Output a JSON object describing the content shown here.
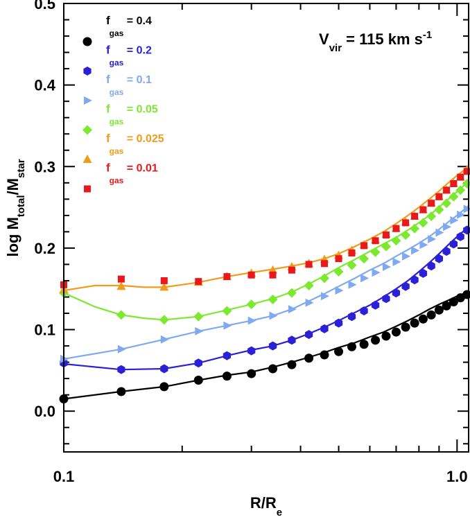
{
  "chart_data": {
    "type": "line",
    "title": "",
    "xlabel": {
      "main": "R/R",
      "sub": "e"
    },
    "ylabel": {
      "p1": "log M",
      "s1": "total",
      "p2": "/M",
      "s2": "star"
    },
    "xscale": "log",
    "xlim": [
      0.1,
      1.07
    ],
    "ylim": [
      -0.05,
      0.5
    ],
    "x_ticks": [
      {
        "value": 0.1,
        "label": "0.1"
      },
      {
        "value": 1.0,
        "label": "1.0"
      }
    ],
    "y_ticks": [
      {
        "value": 0.0,
        "label": "0.0"
      },
      {
        "value": 0.1,
        "label": "0.1"
      },
      {
        "value": 0.2,
        "label": "0.2"
      },
      {
        "value": 0.3,
        "label": "0.3"
      },
      {
        "value": 0.4,
        "label": "0.4"
      },
      {
        "value": 0.5,
        "label": "0.5"
      }
    ],
    "annotation": {
      "V": "V",
      "sub": "vir",
      "rest": " = 115 km s",
      "sup": "-1"
    },
    "legend_position": "top-left",
    "series": [
      {
        "name": "f_gas = 0.4",
        "legend": {
          "f": "f",
          "sub": "gas",
          "value": " = 0.4"
        },
        "color": "#000000",
        "marker": "circle",
        "line": {
          "x": [
            0.1,
            0.14,
            0.18,
            0.22,
            0.26,
            0.3,
            0.34,
            0.38,
            0.42,
            0.46,
            0.5,
            0.55,
            0.6,
            0.65,
            0.7,
            0.75,
            0.8,
            0.85,
            0.9,
            0.95,
            1.0,
            1.05
          ],
          "y": [
            0.015,
            0.024,
            0.03,
            0.038,
            0.044,
            0.048,
            0.054,
            0.06,
            0.066,
            0.072,
            0.078,
            0.084,
            0.091,
            0.097,
            0.104,
            0.111,
            0.118,
            0.125,
            0.131,
            0.136,
            0.141,
            0.145
          ]
        },
        "points": {
          "x": [
            0.1,
            0.14,
            0.18,
            0.22,
            0.26,
            0.3,
            0.34,
            0.38,
            0.42,
            0.46,
            0.5,
            0.54,
            0.58,
            0.62,
            0.66,
            0.7,
            0.74,
            0.78,
            0.82,
            0.86,
            0.9,
            0.94,
            0.98,
            1.02,
            1.06
          ],
          "y": [
            0.015,
            0.024,
            0.03,
            0.038,
            0.043,
            0.046,
            0.052,
            0.057,
            0.065,
            0.069,
            0.073,
            0.079,
            0.082,
            0.087,
            0.092,
            0.097,
            0.103,
            0.108,
            0.113,
            0.118,
            0.124,
            0.129,
            0.134,
            0.139,
            0.143
          ]
        }
      },
      {
        "name": "f_gas = 0.2",
        "legend": {
          "f": "f",
          "sub": "gas",
          "value": " = 0.2"
        },
        "color": "#2b20d6",
        "marker": "hexagon",
        "line": {
          "x": [
            0.1,
            0.14,
            0.18,
            0.22,
            0.26,
            0.3,
            0.34,
            0.38,
            0.42,
            0.46,
            0.5,
            0.55,
            0.6,
            0.65,
            0.7,
            0.75,
            0.8,
            0.85,
            0.9,
            0.95,
            1.0,
            1.07
          ],
          "y": [
            0.058,
            0.051,
            0.052,
            0.059,
            0.068,
            0.075,
            0.08,
            0.087,
            0.095,
            0.103,
            0.111,
            0.121,
            0.13,
            0.14,
            0.15,
            0.16,
            0.171,
            0.182,
            0.193,
            0.204,
            0.214,
            0.226
          ]
        },
        "points": {
          "x": [
            0.1,
            0.14,
            0.18,
            0.22,
            0.26,
            0.3,
            0.34,
            0.38,
            0.42,
            0.46,
            0.5,
            0.54,
            0.58,
            0.62,
            0.66,
            0.7,
            0.74,
            0.78,
            0.82,
            0.86,
            0.9,
            0.94,
            0.98,
            1.02,
            1.06
          ],
          "y": [
            0.059,
            0.051,
            0.052,
            0.059,
            0.068,
            0.074,
            0.08,
            0.087,
            0.094,
            0.101,
            0.108,
            0.116,
            0.123,
            0.13,
            0.138,
            0.145,
            0.153,
            0.161,
            0.169,
            0.178,
            0.187,
            0.196,
            0.205,
            0.214,
            0.222
          ]
        }
      },
      {
        "name": "f_gas = 0.1",
        "legend": {
          "f": "f",
          "sub": "gas",
          "value": " = 0.1"
        },
        "color": "#7fa9f0",
        "marker": "triangle-right",
        "line": {
          "x": [
            0.1,
            0.14,
            0.18,
            0.22,
            0.26,
            0.3,
            0.34,
            0.38,
            0.42,
            0.46,
            0.5,
            0.55,
            0.6,
            0.65,
            0.7,
            0.75,
            0.8,
            0.85,
            0.9,
            0.95,
            1.0,
            1.07
          ],
          "y": [
            0.064,
            0.076,
            0.088,
            0.098,
            0.105,
            0.111,
            0.117,
            0.125,
            0.135,
            0.144,
            0.153,
            0.163,
            0.173,
            0.181,
            0.19,
            0.198,
            0.206,
            0.214,
            0.223,
            0.232,
            0.24,
            0.252
          ]
        },
        "points": {
          "x": [
            0.1,
            0.14,
            0.18,
            0.22,
            0.26,
            0.3,
            0.34,
            0.38,
            0.42,
            0.46,
            0.5,
            0.54,
            0.58,
            0.62,
            0.66,
            0.7,
            0.74,
            0.78,
            0.82,
            0.86,
            0.9,
            0.94,
            0.98,
            1.02,
            1.06
          ],
          "y": [
            0.064,
            0.076,
            0.088,
            0.098,
            0.105,
            0.111,
            0.117,
            0.125,
            0.133,
            0.141,
            0.148,
            0.155,
            0.163,
            0.17,
            0.177,
            0.183,
            0.19,
            0.197,
            0.204,
            0.211,
            0.219,
            0.226,
            0.234,
            0.241,
            0.248
          ]
        }
      },
      {
        "name": "f_gas = 0.05",
        "legend": {
          "f": "f",
          "sub": "gas",
          "value": " = 0.05"
        },
        "color": "#7ce830",
        "marker": "diamond",
        "line": {
          "x": [
            0.1,
            0.12,
            0.14,
            0.16,
            0.18,
            0.22,
            0.26,
            0.3,
            0.34,
            0.38,
            0.42,
            0.46,
            0.5,
            0.55,
            0.6,
            0.65,
            0.7,
            0.75,
            0.8,
            0.85,
            0.9,
            0.95,
            1.0,
            1.07
          ],
          "y": [
            0.145,
            0.128,
            0.118,
            0.114,
            0.112,
            0.116,
            0.124,
            0.131,
            0.138,
            0.146,
            0.156,
            0.166,
            0.176,
            0.186,
            0.196,
            0.205,
            0.213,
            0.222,
            0.231,
            0.24,
            0.25,
            0.26,
            0.269,
            0.282
          ]
        },
        "points": {
          "x": [
            0.1,
            0.14,
            0.18,
            0.22,
            0.26,
            0.3,
            0.34,
            0.38,
            0.42,
            0.46,
            0.5,
            0.54,
            0.58,
            0.62,
            0.66,
            0.7,
            0.74,
            0.78,
            0.82,
            0.86,
            0.9,
            0.94,
            0.98,
            1.02,
            1.06
          ],
          "y": [
            0.145,
            0.118,
            0.112,
            0.116,
            0.123,
            0.131,
            0.137,
            0.145,
            0.154,
            0.163,
            0.171,
            0.179,
            0.187,
            0.195,
            0.202,
            0.209,
            0.216,
            0.224,
            0.231,
            0.239,
            0.247,
            0.255,
            0.263,
            0.271,
            0.279
          ]
        }
      },
      {
        "name": "f_gas = 0.025",
        "legend": {
          "f": "f",
          "sub": "gas",
          "value": " = 0.025"
        },
        "color": "#f39a18",
        "marker": "triangle-up",
        "line": {
          "x": [
            0.1,
            0.12,
            0.14,
            0.16,
            0.18,
            0.2,
            0.22,
            0.26,
            0.3,
            0.34,
            0.38,
            0.42,
            0.46,
            0.5,
            0.55,
            0.6,
            0.65,
            0.7,
            0.75,
            0.8,
            0.85,
            0.9,
            0.95,
            1.0,
            1.07
          ],
          "y": [
            0.148,
            0.154,
            0.154,
            0.152,
            0.152,
            0.155,
            0.158,
            0.165,
            0.17,
            0.174,
            0.178,
            0.182,
            0.187,
            0.193,
            0.202,
            0.211,
            0.22,
            0.23,
            0.24,
            0.25,
            0.26,
            0.27,
            0.28,
            0.289,
            0.3
          ]
        },
        "points": {
          "x": [
            0.1,
            0.14,
            0.18,
            0.22,
            0.26,
            0.3,
            0.34,
            0.38,
            0.42,
            0.46,
            0.5,
            0.54,
            0.58,
            0.62,
            0.66,
            0.7,
            0.74,
            0.78,
            0.82,
            0.86,
            0.9,
            0.94,
            0.98,
            1.02,
            1.06
          ],
          "y": [
            0.149,
            0.153,
            0.152,
            0.158,
            0.165,
            0.169,
            0.173,
            0.177,
            0.181,
            0.186,
            0.191,
            0.197,
            0.204,
            0.21,
            0.217,
            0.224,
            0.232,
            0.239,
            0.247,
            0.255,
            0.263,
            0.271,
            0.279,
            0.287,
            0.296
          ]
        }
      },
      {
        "name": "f_gas = 0.01",
        "legend": {
          "f": "f",
          "sub": "gas",
          "value": " = 0.01"
        },
        "color": "#e8191c",
        "marker": "square",
        "points": {
          "x": [
            0.1,
            0.14,
            0.18,
            0.22,
            0.26,
            0.3,
            0.34,
            0.38,
            0.42,
            0.46,
            0.5,
            0.54,
            0.58,
            0.62,
            0.66,
            0.7,
            0.74,
            0.78,
            0.82,
            0.86,
            0.9,
            0.94,
            0.98,
            1.02,
            1.06
          ],
          "y": [
            0.155,
            0.162,
            0.16,
            0.159,
            0.165,
            0.167,
            0.167,
            0.173,
            0.18,
            0.181,
            0.187,
            0.194,
            0.203,
            0.209,
            0.216,
            0.224,
            0.231,
            0.239,
            0.247,
            0.255,
            0.263,
            0.271,
            0.279,
            0.287,
            0.294
          ]
        }
      }
    ]
  }
}
